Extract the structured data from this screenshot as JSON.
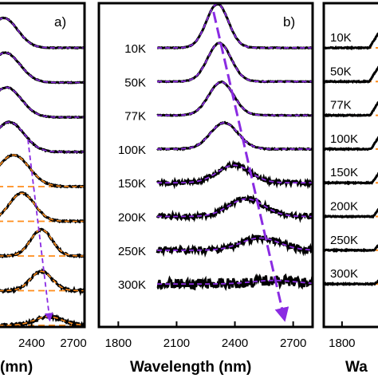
{
  "chart_data": [
    {
      "type": "line",
      "panel_label": "a)",
      "xlabel": "(mn)",
      "xlim": [
        2150,
        2780
      ],
      "x_ticks": [
        "2400",
        "2700"
      ],
      "x_tick_values": [
        2400,
        2700
      ],
      "colors": {
        "data": "#000000",
        "fit": "#ff8c1a",
        "arrow": "#8a2be2"
      },
      "temperatures_shown": [],
      "series": [
        {
          "index": 0,
          "peak": 2200,
          "height": 0.85,
          "width": 140,
          "noise": 0.02,
          "fit": "violet"
        },
        {
          "index": 1,
          "peak": 2210,
          "height": 0.85,
          "width": 150,
          "noise": 0.02,
          "fit": "violet"
        },
        {
          "index": 2,
          "peak": 2220,
          "height": 0.85,
          "width": 150,
          "noise": 0.02,
          "fit": "violet"
        },
        {
          "index": 3,
          "peak": 2240,
          "height": 0.85,
          "width": 150,
          "noise": 0.03,
          "fit": "violet"
        },
        {
          "index": 4,
          "peak": 2270,
          "height": 0.9,
          "width": 160,
          "noise": 0.03,
          "fit": "orange"
        },
        {
          "index": 5,
          "peak": 2330,
          "height": 0.8,
          "width": 130,
          "noise": 0.04,
          "fit": "orange"
        },
        {
          "index": 6,
          "peak": 2470,
          "height": 0.75,
          "width": 110,
          "noise": 0.05,
          "fit": "orange"
        },
        {
          "index": 7,
          "peak": 2470,
          "height": 0.55,
          "width": 110,
          "noise": 0.07,
          "fit": "orange"
        },
        {
          "index": 8,
          "peak": 2520,
          "height": 0.25,
          "width": 140,
          "noise": 0.08,
          "fit": "orange"
        }
      ],
      "arrow": {
        "from": [
          2250,
          6.3
        ],
        "to": [
          2630,
          0.1
        ]
      }
    },
    {
      "type": "line",
      "panel_label": "b)",
      "xlabel": "Wavelength (nm)",
      "xlim": [
        1700,
        2800
      ],
      "x_ticks": [
        "1800",
        "2100",
        "2400",
        "2700"
      ],
      "x_tick_values": [
        1800,
        2100,
        2400,
        2700
      ],
      "colors": {
        "data": "#000000",
        "fit": "#8a2be2",
        "arrow": "#8a2be2"
      },
      "temperatures": [
        "10K",
        "50K",
        "77K",
        "100K",
        "150K",
        "200K",
        "250K",
        "300K"
      ],
      "series": [
        {
          "temperature": "10K",
          "peak": 2310,
          "height": 1.25,
          "width": 80,
          "noise": 0.02
        },
        {
          "temperature": "50K",
          "peak": 2320,
          "height": 1.1,
          "width": 85,
          "noise": 0.02
        },
        {
          "temperature": "77K",
          "peak": 2330,
          "height": 0.95,
          "width": 90,
          "noise": 0.02
        },
        {
          "temperature": "100K",
          "peak": 2345,
          "height": 0.75,
          "width": 100,
          "noise": 0.03
        },
        {
          "temperature": "150K",
          "peak": 2395,
          "height": 0.5,
          "width": 120,
          "noise": 0.12
        },
        {
          "temperature": "200K",
          "peak": 2460,
          "height": 0.5,
          "width": 130,
          "noise": 0.14
        },
        {
          "temperature": "250K",
          "peak": 2530,
          "height": 0.35,
          "width": 140,
          "noise": 0.18
        },
        {
          "temperature": "300K",
          "peak": 2600,
          "height": 0.1,
          "width": 160,
          "noise": 0.3
        }
      ],
      "arrow": {
        "from": [
          2290,
          8.1
        ],
        "to": [
          2650,
          0.15
        ]
      }
    },
    {
      "type": "line",
      "panel_label": "",
      "xlabel": "Wa",
      "xlim": [
        1700,
        2050
      ],
      "x_ticks": [
        "1800"
      ],
      "x_tick_values": [
        1800
      ],
      "colors": {
        "data": "#000000",
        "fit": "#ff8c1a"
      },
      "temperatures": [
        "10K",
        "50K",
        "77K",
        "100K",
        "150K",
        "200K",
        "250K",
        "300K"
      ],
      "series": [
        {
          "temperature": "10K",
          "onset": 1950,
          "height": 0.5
        },
        {
          "temperature": "50K",
          "onset": 1950,
          "height": 0.5
        },
        {
          "temperature": "77K",
          "onset": 1955,
          "height": 0.5
        },
        {
          "temperature": "100K",
          "onset": 1960,
          "height": 0.5
        },
        {
          "temperature": "150K",
          "onset": 1965,
          "height": 0.45
        },
        {
          "temperature": "200K",
          "onset": 1970,
          "height": 0.4
        },
        {
          "temperature": "250K",
          "onset": 1975,
          "height": 0.35
        },
        {
          "temperature": "300K",
          "onset": 1980,
          "height": 0.3
        }
      ]
    }
  ]
}
